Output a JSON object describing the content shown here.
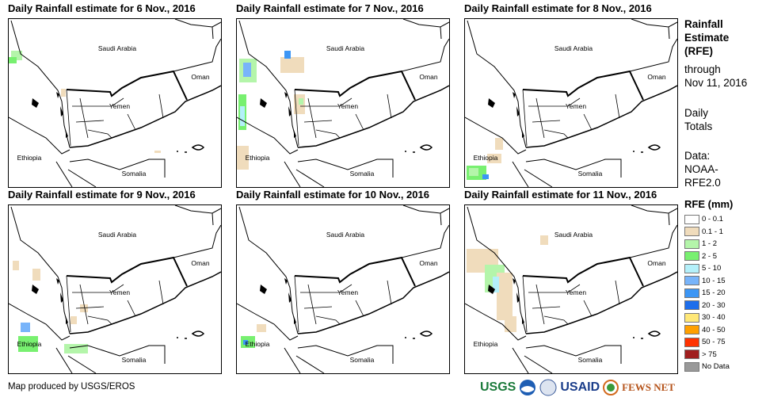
{
  "panels": [
    {
      "title": "Daily Rainfall estimate for 6 Nov., 2016"
    },
    {
      "title": "Daily Rainfall estimate for 7 Nov., 2016"
    },
    {
      "title": "Daily Rainfall estimate for 8 Nov., 2016"
    },
    {
      "title": "Daily Rainfall estimate for 9 Nov., 2016"
    },
    {
      "title": "Daily Rainfall estimate for 10 Nov., 2016"
    },
    {
      "title": "Daily Rainfall estimate for 11 Nov., 2016"
    }
  ],
  "map_labels": {
    "saudi": "Saudi Arabia",
    "oman": "Oman",
    "yemen": "Yemen",
    "ethiopia": "Ethiopia",
    "somalia": "Somalia"
  },
  "side": {
    "title1": "Rainfall",
    "title2": "Estimate",
    "title3": "(RFE)",
    "through": "through",
    "date": "Nov 11, 2016",
    "daily1": "Daily",
    "daily2": "Totals",
    "data1": "Data:",
    "data2": "NOAA-",
    "data3": "RFE2.0"
  },
  "legend": {
    "title": "RFE (mm)",
    "items": [
      {
        "label": "0 - 0.1",
        "color": "#ffffff"
      },
      {
        "label": "0.1 - 1",
        "color": "#f0dcbc"
      },
      {
        "label": "1 - 2",
        "color": "#b4f5aa"
      },
      {
        "label": "2 - 5",
        "color": "#78f070"
      },
      {
        "label": "5 - 10",
        "color": "#b4f0fa"
      },
      {
        "label": "10 - 15",
        "color": "#78b4fa"
      },
      {
        "label": "15 - 20",
        "color": "#3c96f5"
      },
      {
        "label": "20 - 30",
        "color": "#1e6eeb"
      },
      {
        "label": "30 - 40",
        "color": "#ffe878"
      },
      {
        "label": "40 - 50",
        "color": "#ffa000"
      },
      {
        "label": "50 - 75",
        "color": "#ff3200"
      },
      {
        "label": "> 75",
        "color": "#a01e1e"
      },
      {
        "label": "No Data",
        "color": "#999999"
      }
    ]
  },
  "credit": "Map produced by USGS/EROS",
  "logos": {
    "usgs": "USGS",
    "noaa": "NOAA",
    "usaid": "USAID",
    "fews": "FEWS NET"
  }
}
